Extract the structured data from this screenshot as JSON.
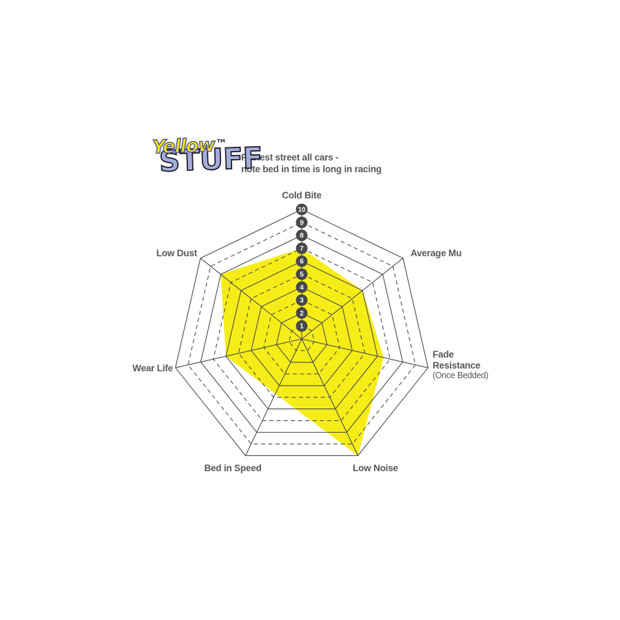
{
  "logo": {
    "word1": "Yellow",
    "tm": "TM",
    "word2": "STUFF"
  },
  "header": {
    "line1": "Fastest street all cars -",
    "line2": "note bed in time is long in racing"
  },
  "colors": {
    "fill_yellow": "#F6ED18",
    "grid_line": "#4A4A4C",
    "label_gray": "#55575A",
    "badge_fill": "#48484A",
    "badge_text": "#FFFFFF",
    "logo_yellow": "#F2E30E",
    "logo_yellow_outline": "#3F4A96",
    "logo_blue": "#A6ADDB",
    "logo_blue_outline": "#15151D"
  },
  "chart_data": {
    "type": "radar",
    "title": "",
    "scale": {
      "min": 0,
      "max": 10,
      "rings": 10,
      "tick_labels": [
        "1",
        "2",
        "3",
        "4",
        "5",
        "6",
        "7",
        "8",
        "9",
        "10"
      ],
      "solid_rings": "even numbered",
      "dashed_rings": "odd numbered"
    },
    "axes": [
      {
        "label": "Cold Bite",
        "sublabel": "",
        "value": 7
      },
      {
        "label": "Average Mu",
        "sublabel": "",
        "value": 6
      },
      {
        "label": "Fade Resistance",
        "sublabel": "(Once Bedded)",
        "value": 6.5
      },
      {
        "label": "Low Noise",
        "sublabel": "",
        "value": 10
      },
      {
        "label": "Bed in Speed",
        "sublabel": "",
        "value": 4.7
      },
      {
        "label": "Wear Life",
        "sublabel": "",
        "value": 6
      },
      {
        "label": "Low Dust",
        "sublabel": "",
        "value": 8
      }
    ],
    "legend": [],
    "grid_on": true
  }
}
